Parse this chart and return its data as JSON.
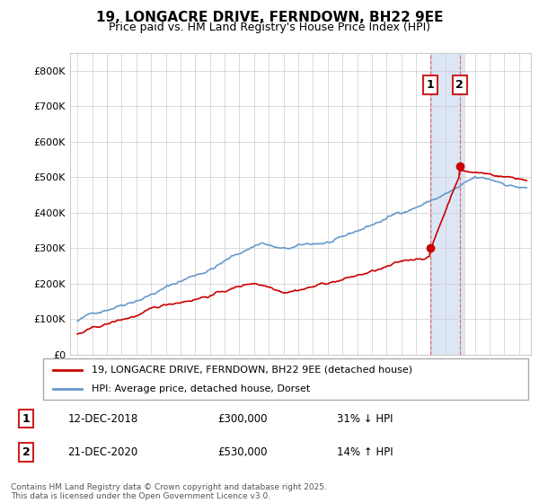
{
  "title": "19, LONGACRE DRIVE, FERNDOWN, BH22 9EE",
  "subtitle": "Price paid vs. HM Land Registry's House Price Index (HPI)",
  "legend_label_red": "19, LONGACRE DRIVE, FERNDOWN, BH22 9EE (detached house)",
  "legend_label_blue": "HPI: Average price, detached house, Dorset",
  "annotation1_date": "12-DEC-2018",
  "annotation1_price": "£300,000",
  "annotation1_hpi": "31% ↓ HPI",
  "annotation2_date": "21-DEC-2020",
  "annotation2_price": "£530,000",
  "annotation2_hpi": "14% ↑ HPI",
  "footer": "Contains HM Land Registry data © Crown copyright and database right 2025.\nThis data is licensed under the Open Government Licence v3.0.",
  "red_color": "#cc0000",
  "blue_color": "#6699cc",
  "highlight_color": "#dce6f5",
  "annotation_box_color": "#cc2222",
  "vline_color": "#dd6666",
  "yticks": [
    0,
    100000,
    200000,
    300000,
    400000,
    500000,
    600000,
    700000,
    800000
  ],
  "marker1_x": 2018.96,
  "marker1_y": 300000,
  "marker2_x": 2020.97,
  "marker2_y": 530000,
  "highlight_x_start": 2018.96,
  "highlight_x_end": 2021.3,
  "xlim_left": 1994.5,
  "xlim_right": 2025.8
}
